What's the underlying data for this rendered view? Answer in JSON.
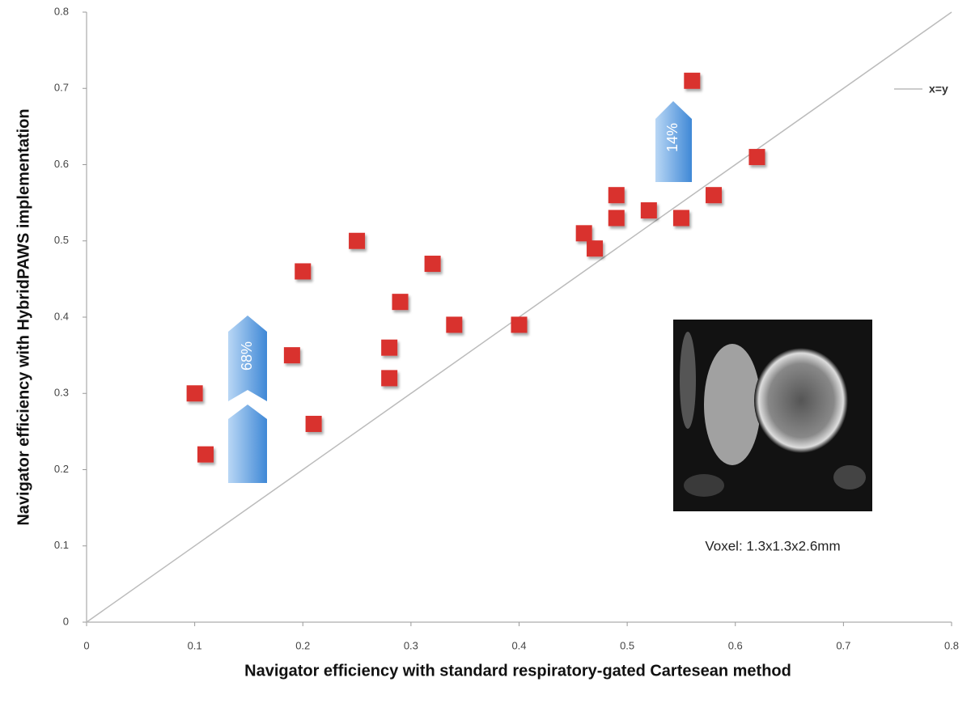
{
  "chart_data": {
    "type": "scatter",
    "x_label": "Navigator efficiency with standard respiratory-gated Cartesean method",
    "y_label": "Navigator efficiency with HybridPAWS implementation",
    "x": [
      0.1,
      0.11,
      0.19,
      0.2,
      0.21,
      0.25,
      0.28,
      0.28,
      0.29,
      0.32,
      0.34,
      0.4,
      0.46,
      0.47,
      0.49,
      0.49,
      0.52,
      0.55,
      0.56,
      0.58,
      0.62
    ],
    "values": [
      0.3,
      0.22,
      0.35,
      0.46,
      0.26,
      0.5,
      0.36,
      0.32,
      0.42,
      0.47,
      0.39,
      0.39,
      0.51,
      0.49,
      0.56,
      0.53,
      0.54,
      0.53,
      0.71,
      0.56,
      0.61
    ],
    "color": "#d9302e",
    "xlim": [
      0,
      0.8
    ],
    "ylim": [
      0,
      0.8
    ],
    "xticks": [
      0,
      0.1,
      0.2,
      0.3,
      0.4,
      0.5,
      0.6,
      0.7,
      0.8
    ],
    "yticks": [
      0,
      0.1,
      0.2,
      0.3,
      0.4,
      0.5,
      0.6,
      0.7,
      0.8
    ],
    "reference_line": {
      "label": "x=y",
      "color": "#bbbbbb"
    },
    "annotations": [
      "68%",
      "14%"
    ],
    "inset_caption": "Voxel: 1.3x1.3x2.6mm"
  }
}
